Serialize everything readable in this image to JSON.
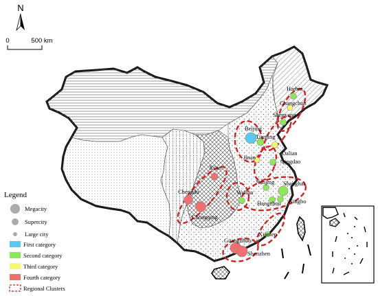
{
  "north": {
    "label": "N"
  },
  "scale": {
    "start": "0",
    "end": "500 km"
  },
  "legend": {
    "title": "Legend",
    "sizes": [
      {
        "label": "Megacity"
      },
      {
        "label": "Supercity"
      },
      {
        "label": "Large city"
      }
    ],
    "categories": [
      {
        "label": "First category",
        "color": "#5bc8f0"
      },
      {
        "label": "Second category",
        "color": "#8ee65a"
      },
      {
        "label": "Third category",
        "color": "#f8f870"
      },
      {
        "label": "Fourth category",
        "color": "#f07070"
      }
    ],
    "clusters": {
      "label": "Regional Clusters",
      "color": "#cc2222"
    }
  },
  "cities": [
    {
      "name": "Harbin",
      "category": "second"
    },
    {
      "name": "Changchun",
      "category": "third"
    },
    {
      "name": "Shenyang",
      "category": "second"
    },
    {
      "name": "Beijing",
      "category": "first"
    },
    {
      "name": "Tianjing",
      "category": "second"
    },
    {
      "name": "Dalian",
      "category": "third"
    },
    {
      "name": "Jinan",
      "category": "third"
    },
    {
      "name": "Qingdao",
      "category": "second"
    },
    {
      "name": "Xi'an",
      "category": "fourth"
    },
    {
      "name": "Nanjing",
      "category": "second"
    },
    {
      "name": "Shanghai",
      "category": "second"
    },
    {
      "name": "Wuhan",
      "category": "second"
    },
    {
      "name": "Hangzhou",
      "category": "second"
    },
    {
      "name": "Ningbo",
      "category": "second"
    },
    {
      "name": "Chengdu",
      "category": "fourth"
    },
    {
      "name": "Chongqing",
      "category": "fourth"
    },
    {
      "name": "Xiamen",
      "category": "second"
    },
    {
      "name": "Guangzhou",
      "category": "fourth"
    },
    {
      "name": "Shenzhen",
      "category": "fourth"
    }
  ]
}
